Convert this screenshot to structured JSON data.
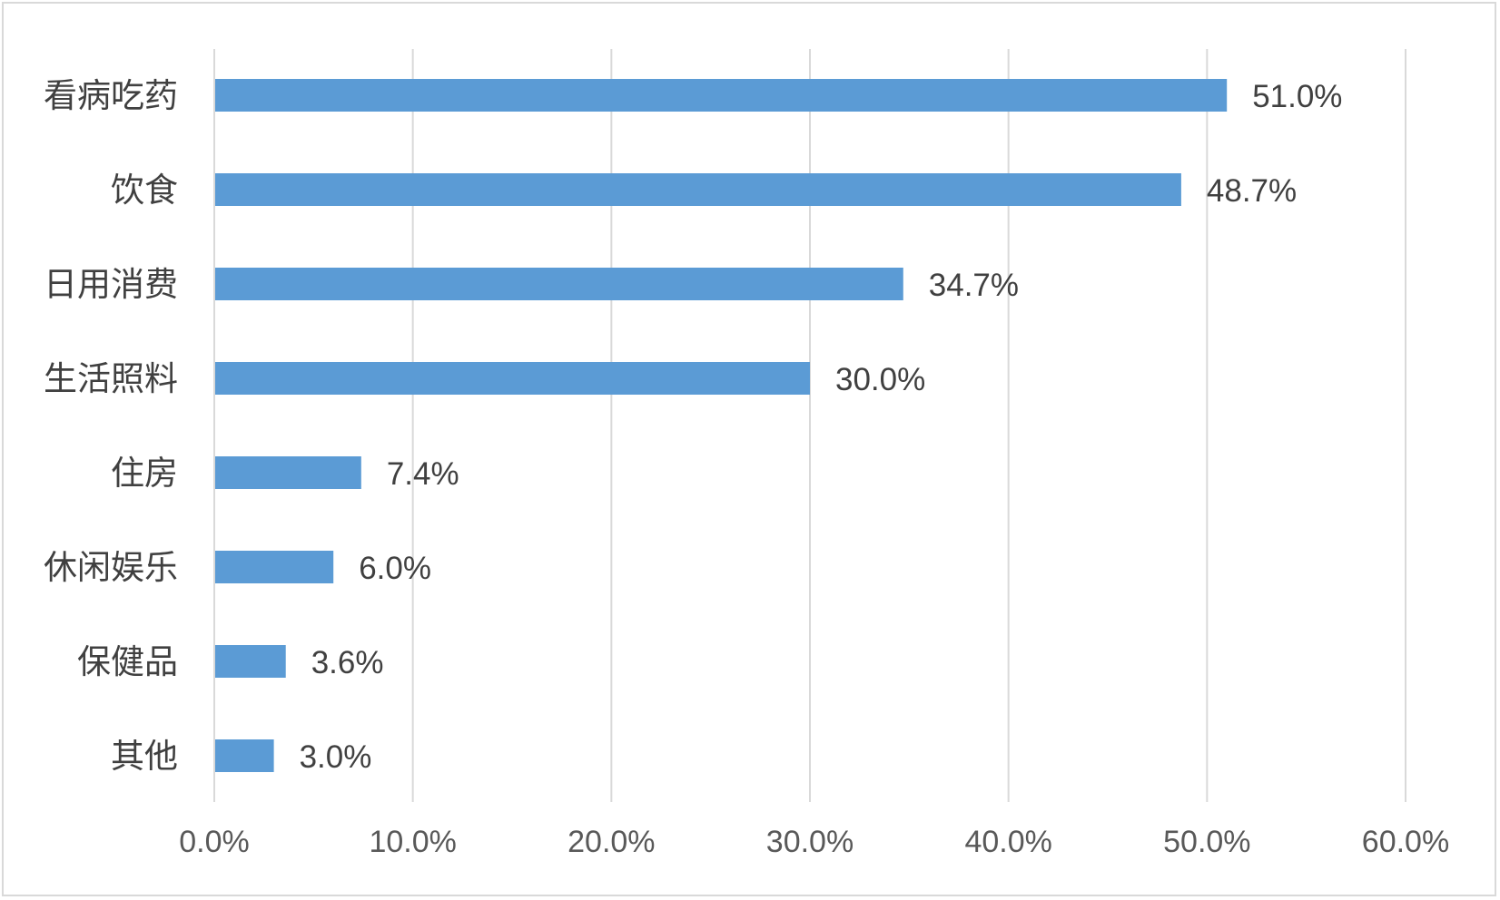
{
  "chart_data": {
    "type": "bar",
    "orientation": "horizontal",
    "categories": [
      "看病吃药",
      "饮食",
      "日用消费",
      "生活照料",
      "住房",
      "休闲娱乐",
      "保健品",
      "其他"
    ],
    "values": [
      51.0,
      48.7,
      34.7,
      30.0,
      7.4,
      6.0,
      3.6,
      3.0
    ],
    "value_labels": [
      "51.0%",
      "48.7%",
      "34.7%",
      "30.0%",
      "7.4%",
      "6.0%",
      "3.6%",
      "3.0%"
    ],
    "x_ticks": [
      "0.0%",
      "10.0%",
      "20.0%",
      "30.0%",
      "40.0%",
      "50.0%",
      "60.0%"
    ],
    "xlim": [
      0,
      60
    ],
    "grid": true,
    "legend": "none",
    "bar_color": "#5b9bd5"
  }
}
